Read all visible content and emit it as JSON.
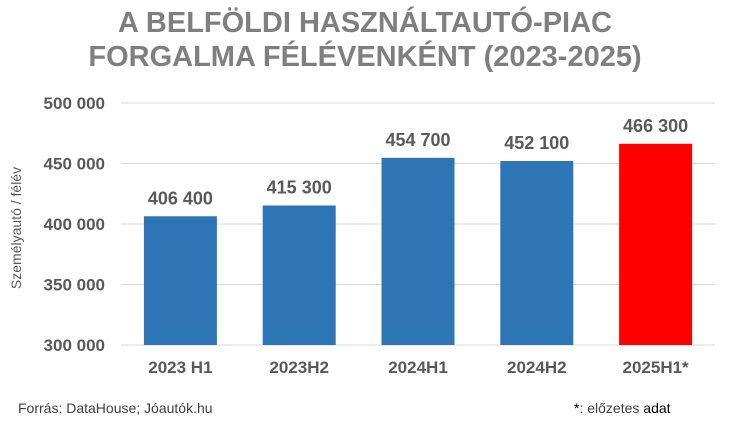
{
  "chart_data": {
    "type": "bar",
    "title": [
      "A BELFÖLDI HASZNÁLTAUTÓ-PIAC",
      "FORGALMA FÉLÉVENKÉNT (2023-2025)"
    ],
    "ylabel": "Személyautó / félév",
    "xlabel": "",
    "categories": [
      "2023 H1",
      "2023H2",
      "2024H1",
      "2024H2",
      "2025H1*"
    ],
    "values": [
      406400,
      415300,
      454700,
      452100,
      466300
    ],
    "value_labels": [
      "406 400",
      "415 300",
      "454 700",
      "452 100",
      "466 300"
    ],
    "bar_colors": [
      "#2e75b6",
      "#2e75b6",
      "#2e75b6",
      "#2e75b6",
      "#ff0000"
    ],
    "ylim": [
      300000,
      500000
    ],
    "yticks": [
      300000,
      350000,
      400000,
      450000,
      500000
    ],
    "ytick_labels": [
      "300 000",
      "350 000",
      "400 000",
      "450 000",
      "500 000"
    ],
    "grid": true,
    "legend": "none"
  },
  "footer": {
    "source": "Forrás: DataHouse; Jóautók.hu",
    "note_asterisk": "*",
    "note_text": ": előzetes ",
    "note_adat": "adat"
  }
}
